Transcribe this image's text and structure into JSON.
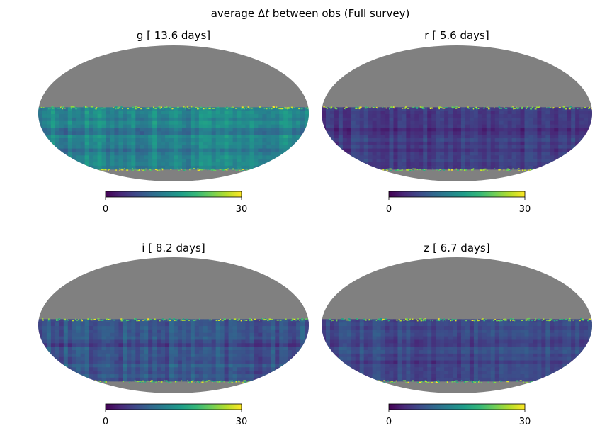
{
  "figure": {
    "title_prefix": "average ",
    "title_symbol": "Δ",
    "title_var": "t",
    "title_suffix": " between obs (Full survey)"
  },
  "colors": {
    "masked": "#808080",
    "edge_noise": "#e2e419",
    "viridis": [
      "#440154",
      "#482878",
      "#3e4989",
      "#31688e",
      "#26828e",
      "#1f9e89",
      "#35b779",
      "#6ece58",
      "#b5de2b",
      "#fde725"
    ]
  },
  "chart_data": [
    {
      "type": "heatmap",
      "projection": "mollweide",
      "title": "g [ 13.6 days]",
      "band": "g",
      "median_days": 13.6,
      "colorbar": {
        "min": 0,
        "max": 30,
        "ticks": [
          "0",
          "30"
        ],
        "cmap": "viridis"
      },
      "typical_value": 13.6,
      "value_range": [
        9,
        18
      ]
    },
    {
      "type": "heatmap",
      "projection": "mollweide",
      "title": "r [  5.6 days]",
      "band": "r",
      "median_days": 5.6,
      "colorbar": {
        "min": 0,
        "max": 30,
        "ticks": [
          "0",
          "30"
        ],
        "cmap": "viridis"
      },
      "typical_value": 5.6,
      "value_range": [
        3,
        9
      ]
    },
    {
      "type": "heatmap",
      "projection": "mollweide",
      "title": "i [  8.2 days]",
      "band": "i",
      "median_days": 8.2,
      "colorbar": {
        "min": 0,
        "max": 30,
        "ticks": [
          "0",
          "30"
        ],
        "cmap": "viridis"
      },
      "typical_value": 8.2,
      "value_range": [
        5,
        13
      ]
    },
    {
      "type": "heatmap",
      "projection": "mollweide",
      "title": "z [  6.7 days]",
      "band": "z",
      "median_days": 6.7,
      "colorbar": {
        "min": 0,
        "max": 30,
        "ticks": [
          "0",
          "30"
        ],
        "cmap": "viridis"
      },
      "typical_value": 6.7,
      "value_range": [
        4,
        10
      ]
    }
  ]
}
